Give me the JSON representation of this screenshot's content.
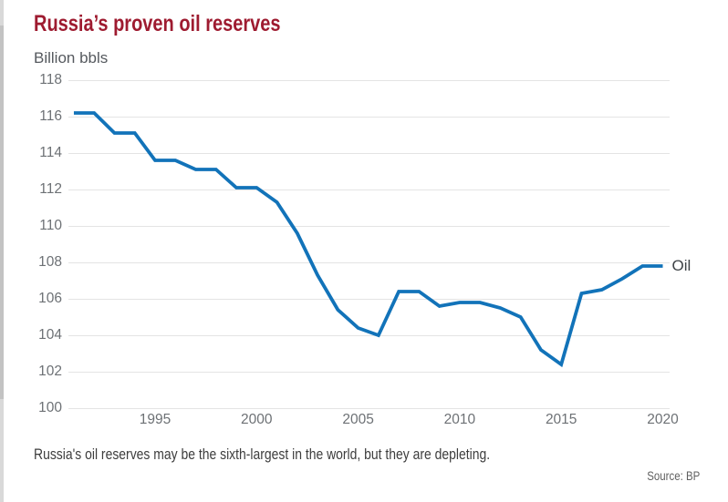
{
  "page": {
    "title": "Russia’s proven oil reserves",
    "subtitle": "Billion bbls",
    "caption": "Russia's oil reserves may be the sixth-largest in the world, but they are depleting.",
    "source": "Source: BP"
  },
  "chart_data": {
    "type": "line",
    "title": "Russia’s proven oil reserves",
    "ylabel": "Billion bbls",
    "xlabel": "",
    "x": [
      1991,
      1992,
      1993,
      1994,
      1995,
      1996,
      1997,
      1998,
      1999,
      2000,
      2001,
      2002,
      2003,
      2004,
      2005,
      2006,
      2007,
      2008,
      2009,
      2010,
      2011,
      2012,
      2013,
      2014,
      2015,
      2016,
      2017,
      2018,
      2019,
      2020
    ],
    "series": [
      {
        "name": "Oil",
        "color": "#1273b9",
        "values": [
          116.2,
          116.2,
          115.1,
          115.1,
          113.6,
          113.6,
          113.1,
          113.1,
          112.1,
          112.1,
          111.3,
          109.6,
          107.3,
          105.4,
          104.4,
          104.0,
          106.4,
          106.4,
          105.6,
          105.8,
          105.8,
          105.5,
          105.0,
          103.2,
          102.4,
          106.3,
          106.5,
          107.1,
          107.8,
          107.8
        ]
      }
    ],
    "xlim": [
      1991,
      2020
    ],
    "ylim": [
      100,
      118
    ],
    "ytick_step": 2,
    "xticks": [
      1995,
      2000,
      2005,
      2010,
      2015,
      2020
    ],
    "grid": "horizontal",
    "legend_position": "line-end-label",
    "colors": {
      "line": "#1273b9",
      "title": "#9e1b30",
      "grid": "#e4e4e4",
      "tick_text": "#6d7175"
    }
  }
}
